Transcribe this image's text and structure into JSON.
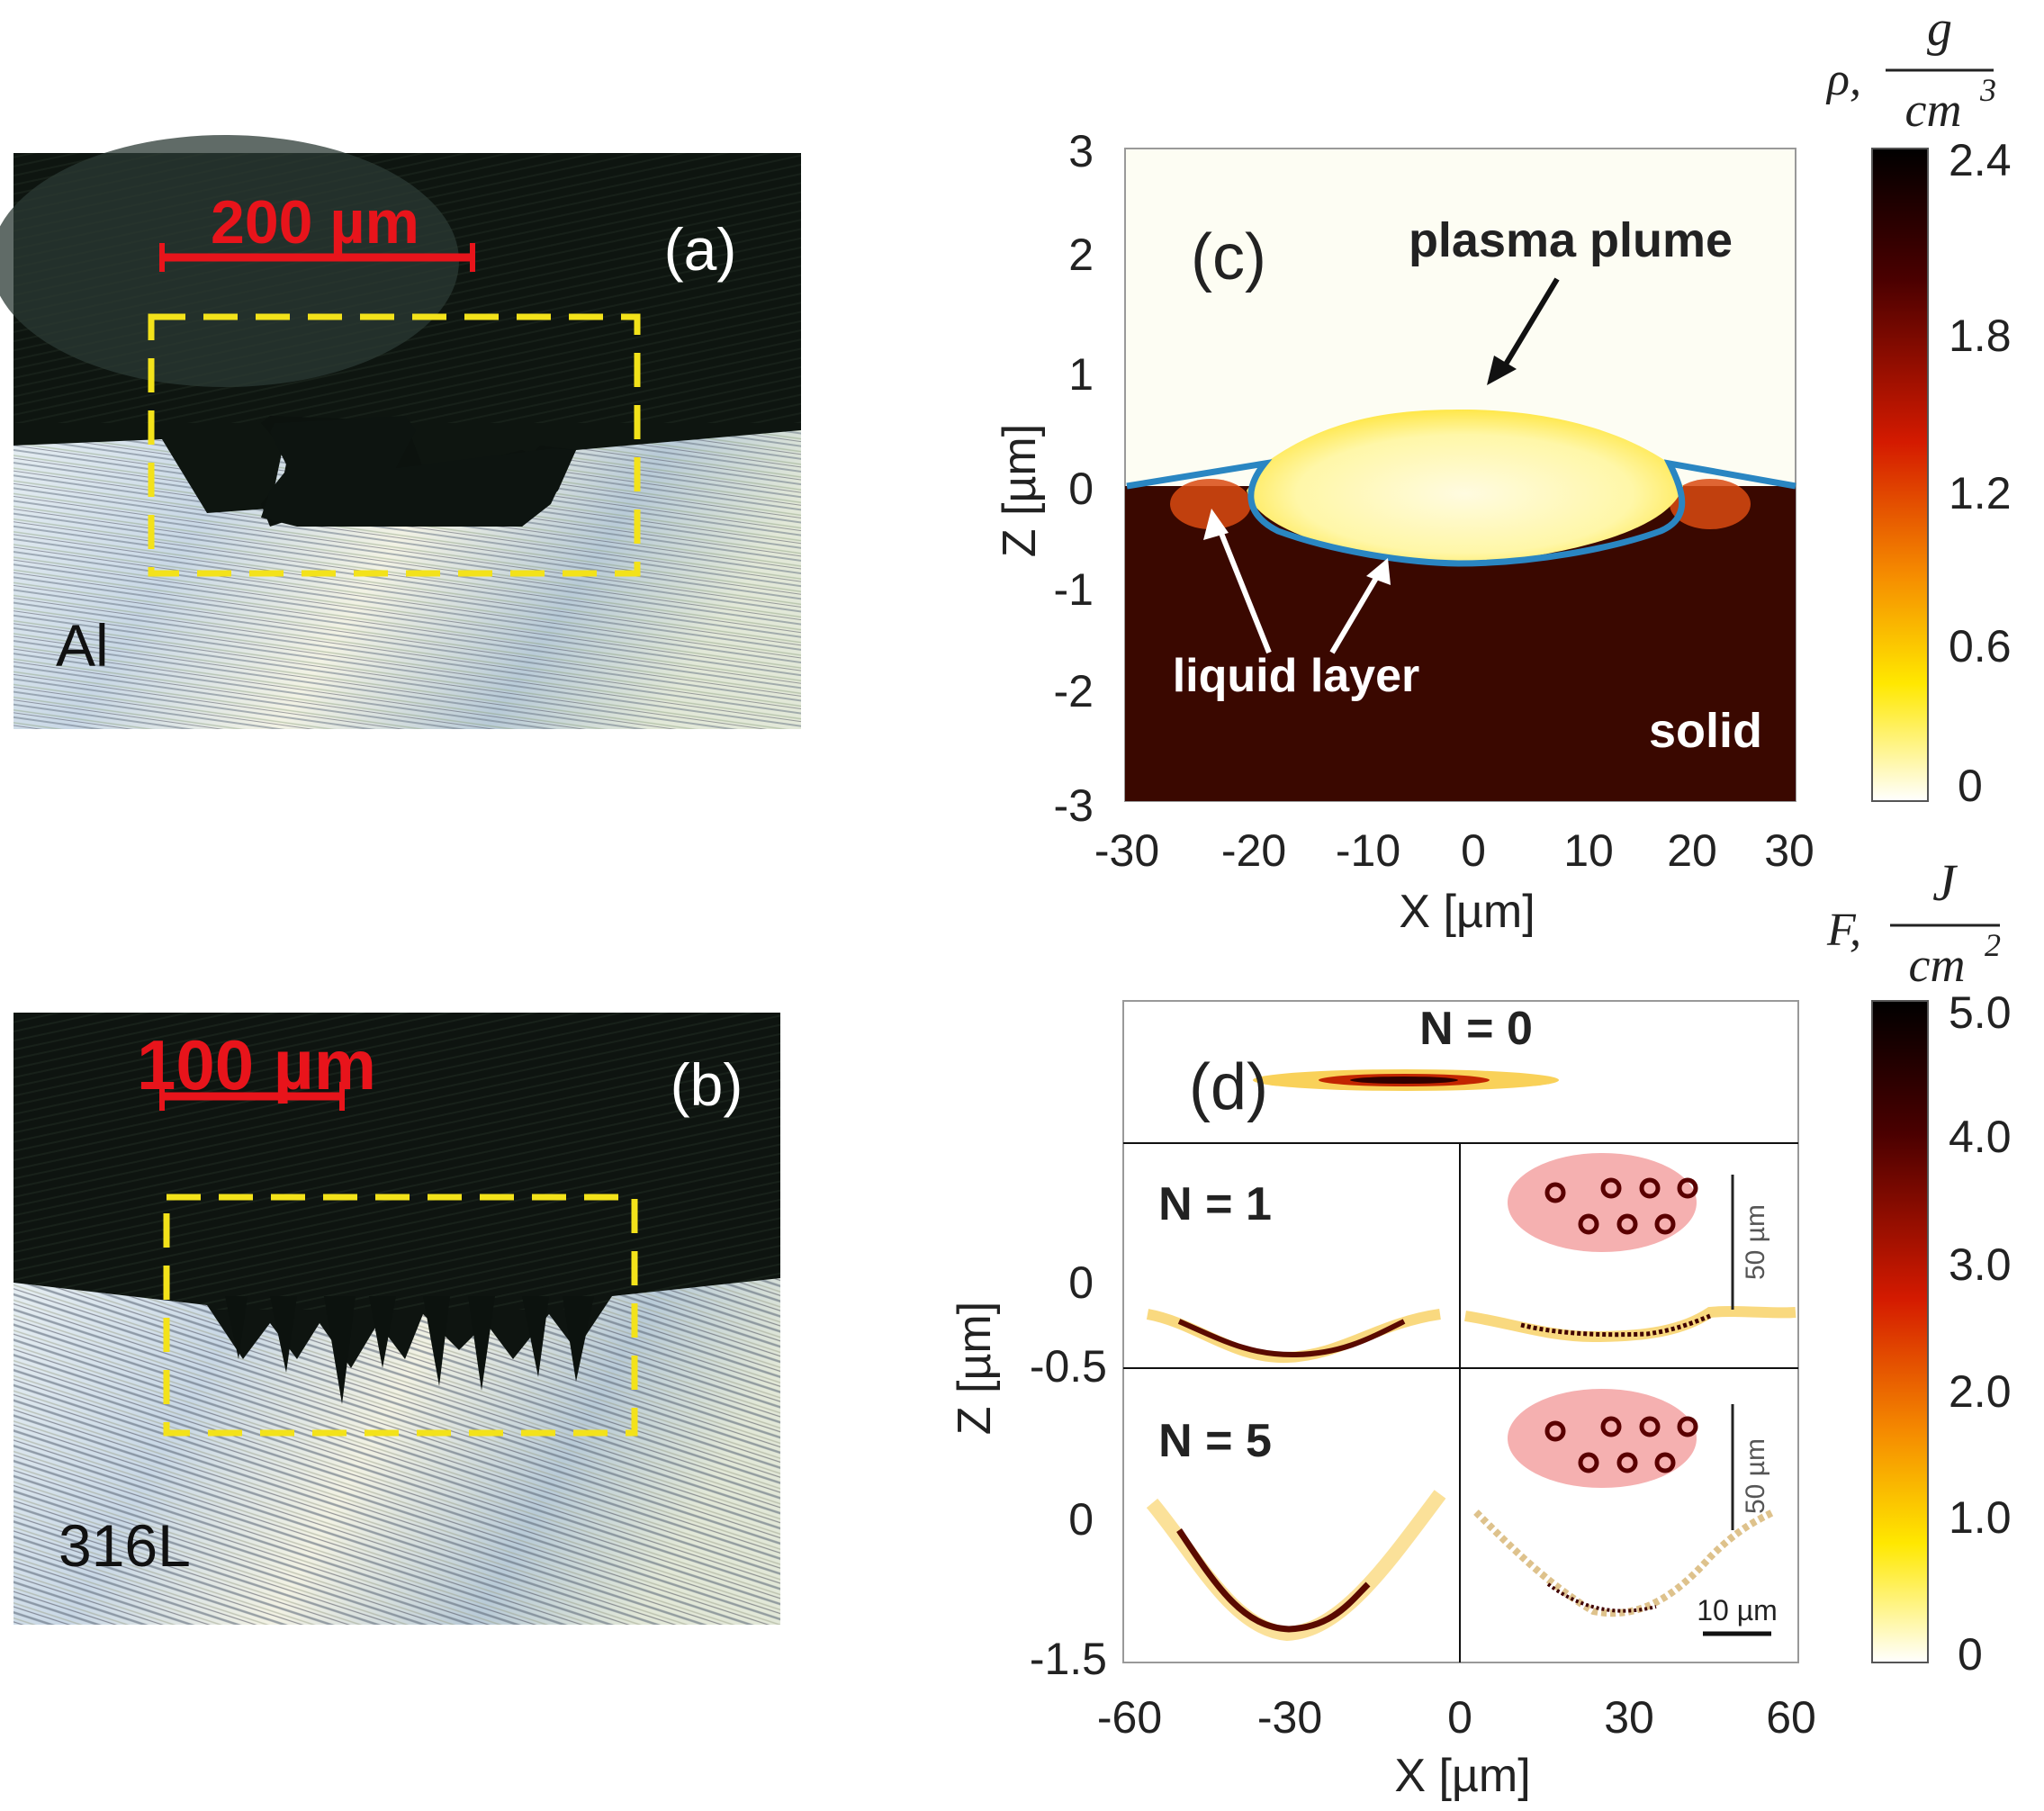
{
  "panel_a": {
    "label": "(a)",
    "scale_bar": "200 µm",
    "material": "Al"
  },
  "panel_b": {
    "label": "(b)",
    "scale_bar": "100 µm",
    "material": "316L"
  },
  "panel_c": {
    "label": "(c)",
    "annotations": {
      "plume": "plasma plume",
      "liquid": "liquid layer",
      "solid": "solid"
    },
    "xlabel": "X [µm]",
    "ylabel": "Z [µm]",
    "xticks": [
      "-30",
      "-20",
      "-10",
      "0",
      "10",
      "20",
      "30"
    ],
    "yticks": [
      "3",
      "2",
      "1",
      "0",
      "-1",
      "-2",
      "-3"
    ],
    "colorbar": {
      "symbol": "ρ,",
      "numerator": "g",
      "denominator": "cm",
      "exponent": "3",
      "ticks": [
        "2.4",
        "1.8",
        "1.2",
        "0.6",
        "0"
      ]
    }
  },
  "panel_d": {
    "label": "(d)",
    "rows": {
      "n0": "N = 0",
      "n1": "N = 1",
      "n5": "N = 5"
    },
    "inset_scale": "50 µm",
    "scale_bar": "10 µm",
    "xlabel": "X [µm]",
    "ylabel": "Z [µm]",
    "xticks": [
      "-60",
      "-30",
      "0",
      "30",
      "60"
    ],
    "yticks_upper": [
      "0",
      "-0.5"
    ],
    "yticks_lower": [
      "0",
      "-1.5"
    ],
    "colorbar": {
      "symbol": "F,",
      "numerator": "J",
      "denominator": "cm",
      "exponent": "2",
      "ticks": [
        "5.0",
        "4.0",
        "3.0",
        "2.0",
        "1.0",
        "0"
      ]
    }
  },
  "colors": {
    "scale_red": "#e8141b",
    "dashed_yellow": "#f3e21a",
    "interface_blue": "#2a86c2",
    "solid_dark": "#3a0800"
  }
}
